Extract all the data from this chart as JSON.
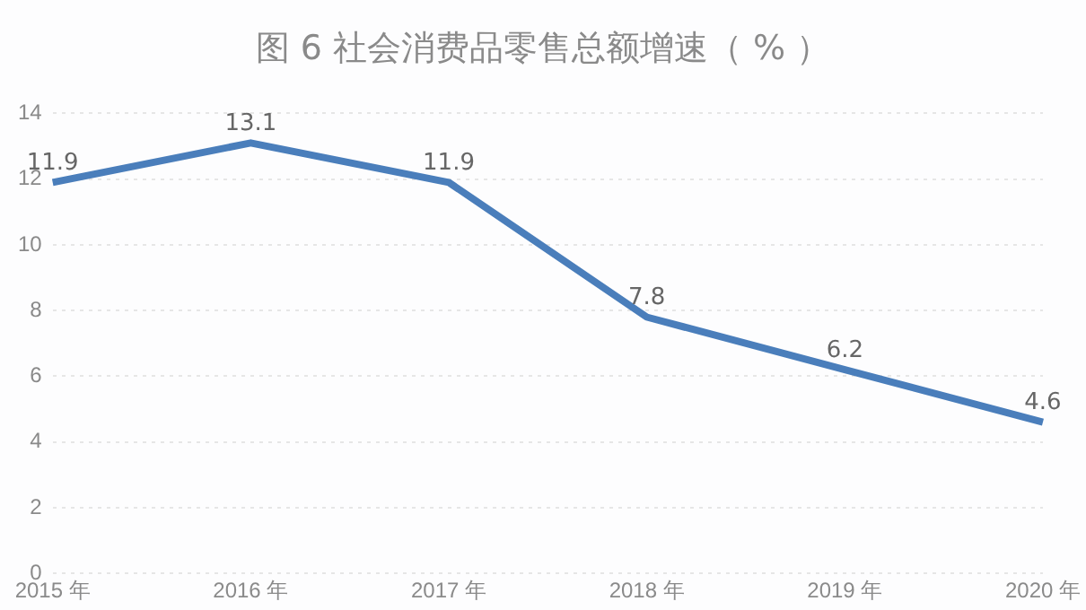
{
  "chart_data": {
    "type": "line",
    "title": "图 6  社会消费品零售总额增速（ % ）",
    "categories": [
      "2015 年",
      "2016 年",
      "2017 年",
      "2018 年",
      "2019 年",
      "2020 年"
    ],
    "series": [
      {
        "color": "#4a7ebb",
        "values": [
          11.9,
          13.1,
          11.9,
          7.8,
          6.2,
          4.6
        ]
      }
    ],
    "ylim": [
      0,
      14
    ],
    "yticks": [
      0,
      2,
      4,
      6,
      8,
      10,
      12,
      14
    ],
    "grid": "y",
    "legend": false,
    "marker": "none",
    "line_style": "solid",
    "data_labels": true
  }
}
